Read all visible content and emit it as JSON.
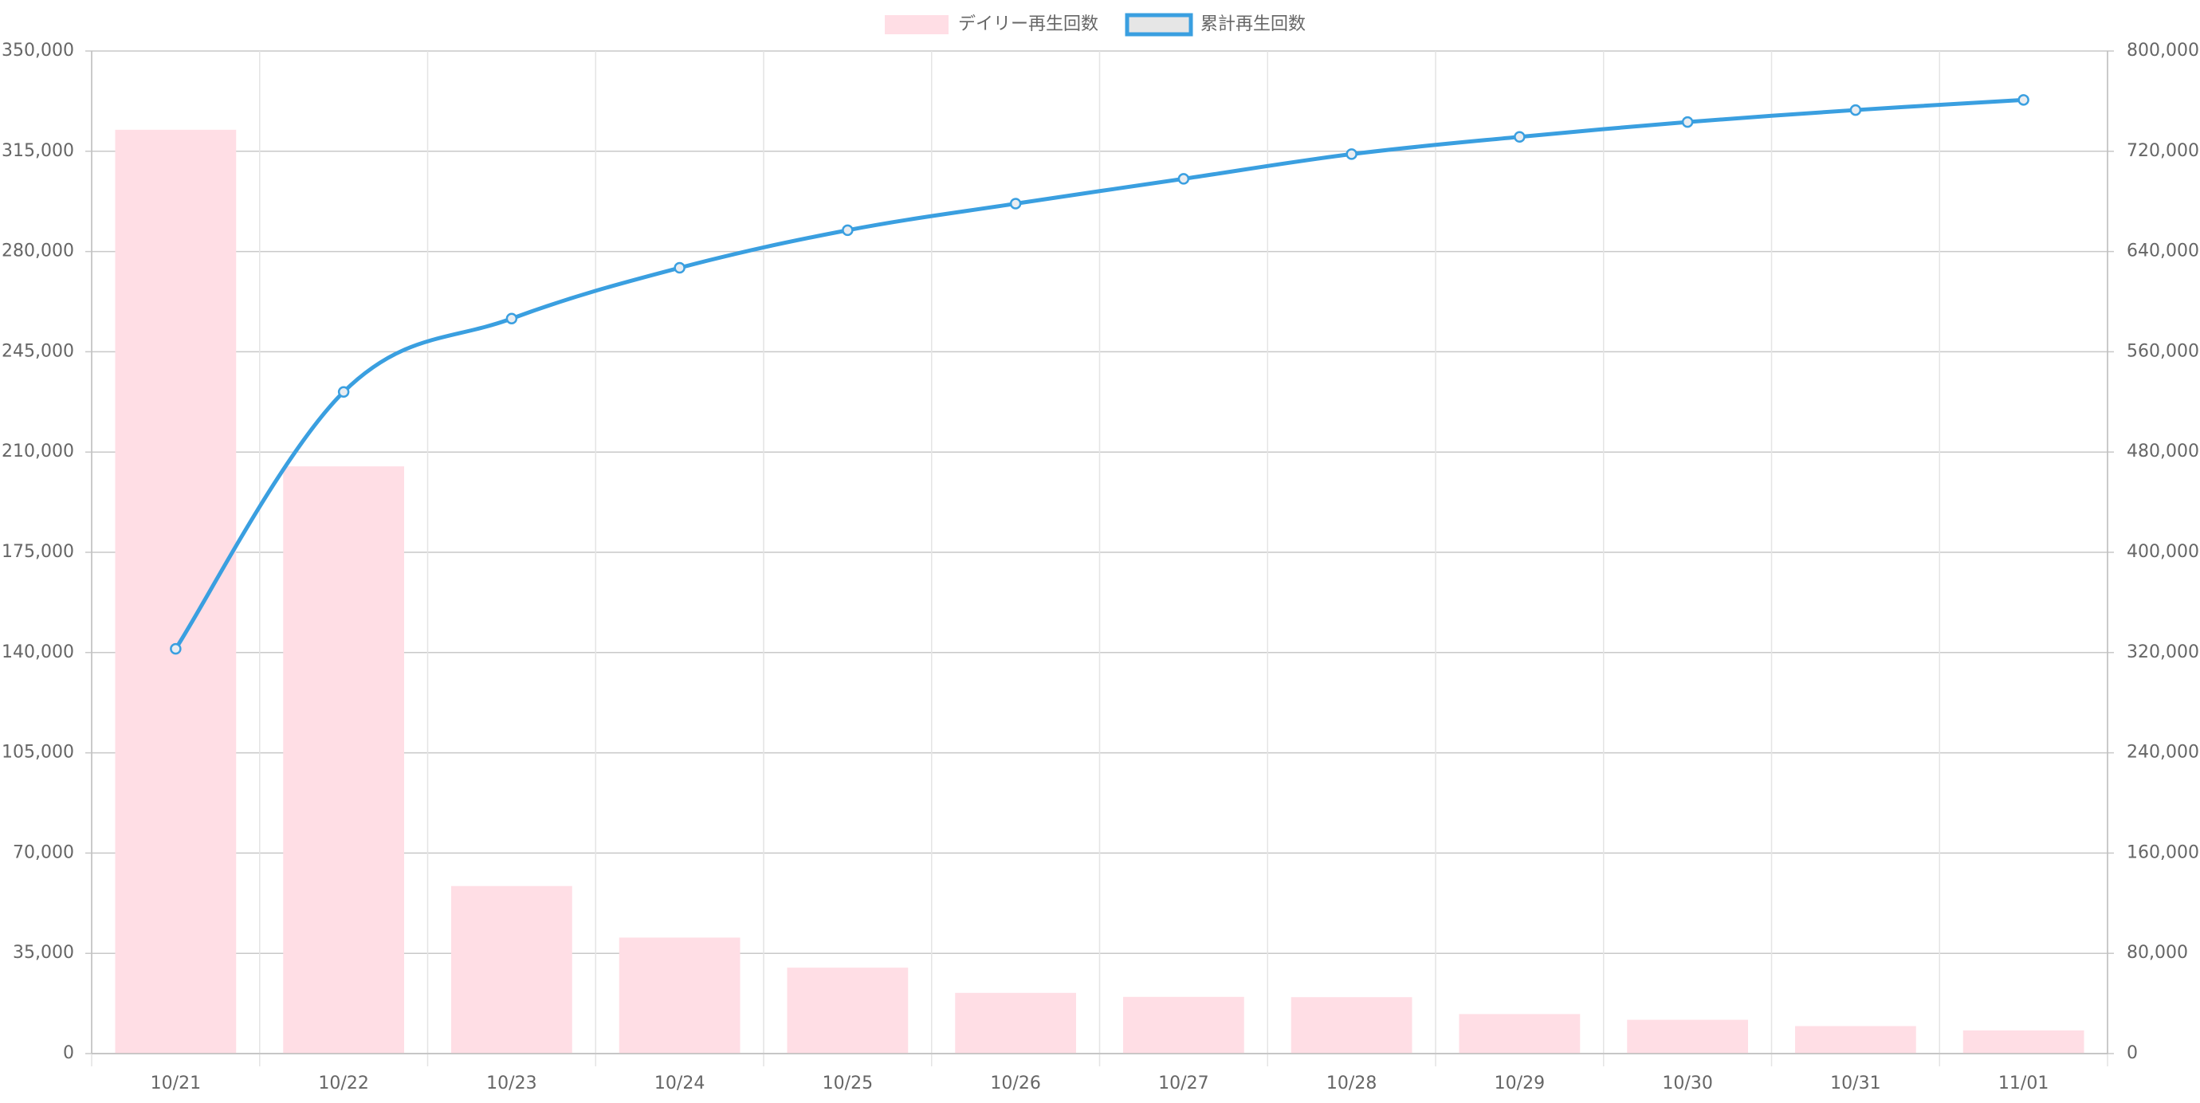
{
  "chart_data": {
    "type": "bar",
    "categories": [
      "10/21",
      "10/22",
      "10/23",
      "10/24",
      "10/25",
      "10/26",
      "10/27",
      "10/28",
      "10/29",
      "10/30",
      "10/31",
      "11/01"
    ],
    "title": "",
    "xlabel": "",
    "ylabel": "",
    "legend_position": "top",
    "grid": true,
    "axes": {
      "left": {
        "min": 0,
        "max": 350000,
        "step": 35000,
        "tick_labels": [
          "0",
          "35,000",
          "70,000",
          "105,000",
          "140,000",
          "175,000",
          "210,000",
          "245,000",
          "280,000",
          "315,000",
          "350,000"
        ]
      },
      "right": {
        "min": 0,
        "max": 800000,
        "step": 80000,
        "tick_labels": [
          "0",
          "80,000",
          "160,000",
          "240,000",
          "320,000",
          "400,000",
          "480,000",
          "560,000",
          "640,000",
          "720,000",
          "800,000"
        ]
      }
    },
    "series": [
      {
        "name": "デイリー再生回数",
        "type": "bar",
        "axis": "left",
        "color": "#ffdee5",
        "values": [
          322500,
          205000,
          58500,
          40500,
          30000,
          21200,
          19800,
          19700,
          13800,
          11800,
          9600,
          8100
        ]
      },
      {
        "name": "累計再生回数",
        "type": "line",
        "axis": "right",
        "color": "#3a9fe0",
        "values": [
          323000,
          528000,
          586500,
          627000,
          657000,
          678200,
          698000,
          717700,
          731500,
          743300,
          752900,
          761000
        ]
      }
    ]
  }
}
